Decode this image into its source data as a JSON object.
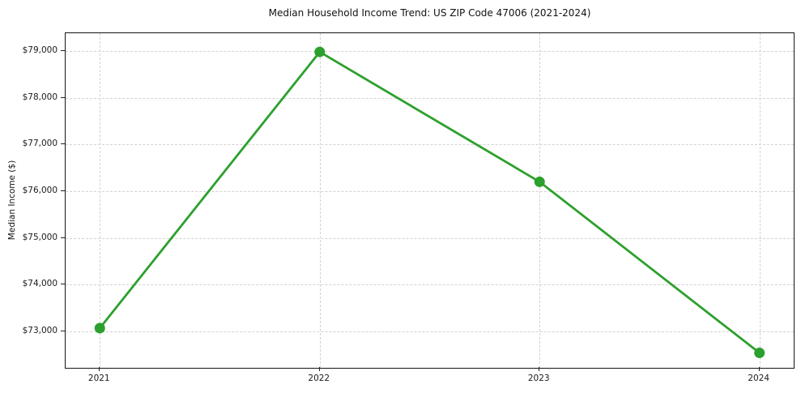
{
  "chart_data": {
    "type": "line",
    "title": "Median Household Income Trend: US ZIP Code 47006 (2021-2024)",
    "xlabel": "",
    "ylabel": "Median Income ($)",
    "categories": [
      "2021",
      "2022",
      "2023",
      "2024"
    ],
    "series": [
      {
        "name": "Median Household Income",
        "values": [
          73070,
          78980,
          76200,
          72540
        ]
      }
    ],
    "ylim": [
      72220,
      79380
    ],
    "y_ticks": [
      {
        "value": 73000,
        "label": "$73,000"
      },
      {
        "value": 74000,
        "label": "$74,000"
      },
      {
        "value": 75000,
        "label": "$75,000"
      },
      {
        "value": 76000,
        "label": "$76,000"
      },
      {
        "value": 77000,
        "label": "$77,000"
      },
      {
        "value": 78000,
        "label": "$78,000"
      },
      {
        "value": 79000,
        "label": "$79,000"
      }
    ],
    "grid": true,
    "grid_style": "dashed",
    "legend_position": "none",
    "line_color": "#2ca02c",
    "marker": "circle",
    "marker_color": "#2ca02c",
    "background_color": "#ffffff",
    "grid_color": "#d2d2d2",
    "text_color": "#1a1a1a"
  }
}
